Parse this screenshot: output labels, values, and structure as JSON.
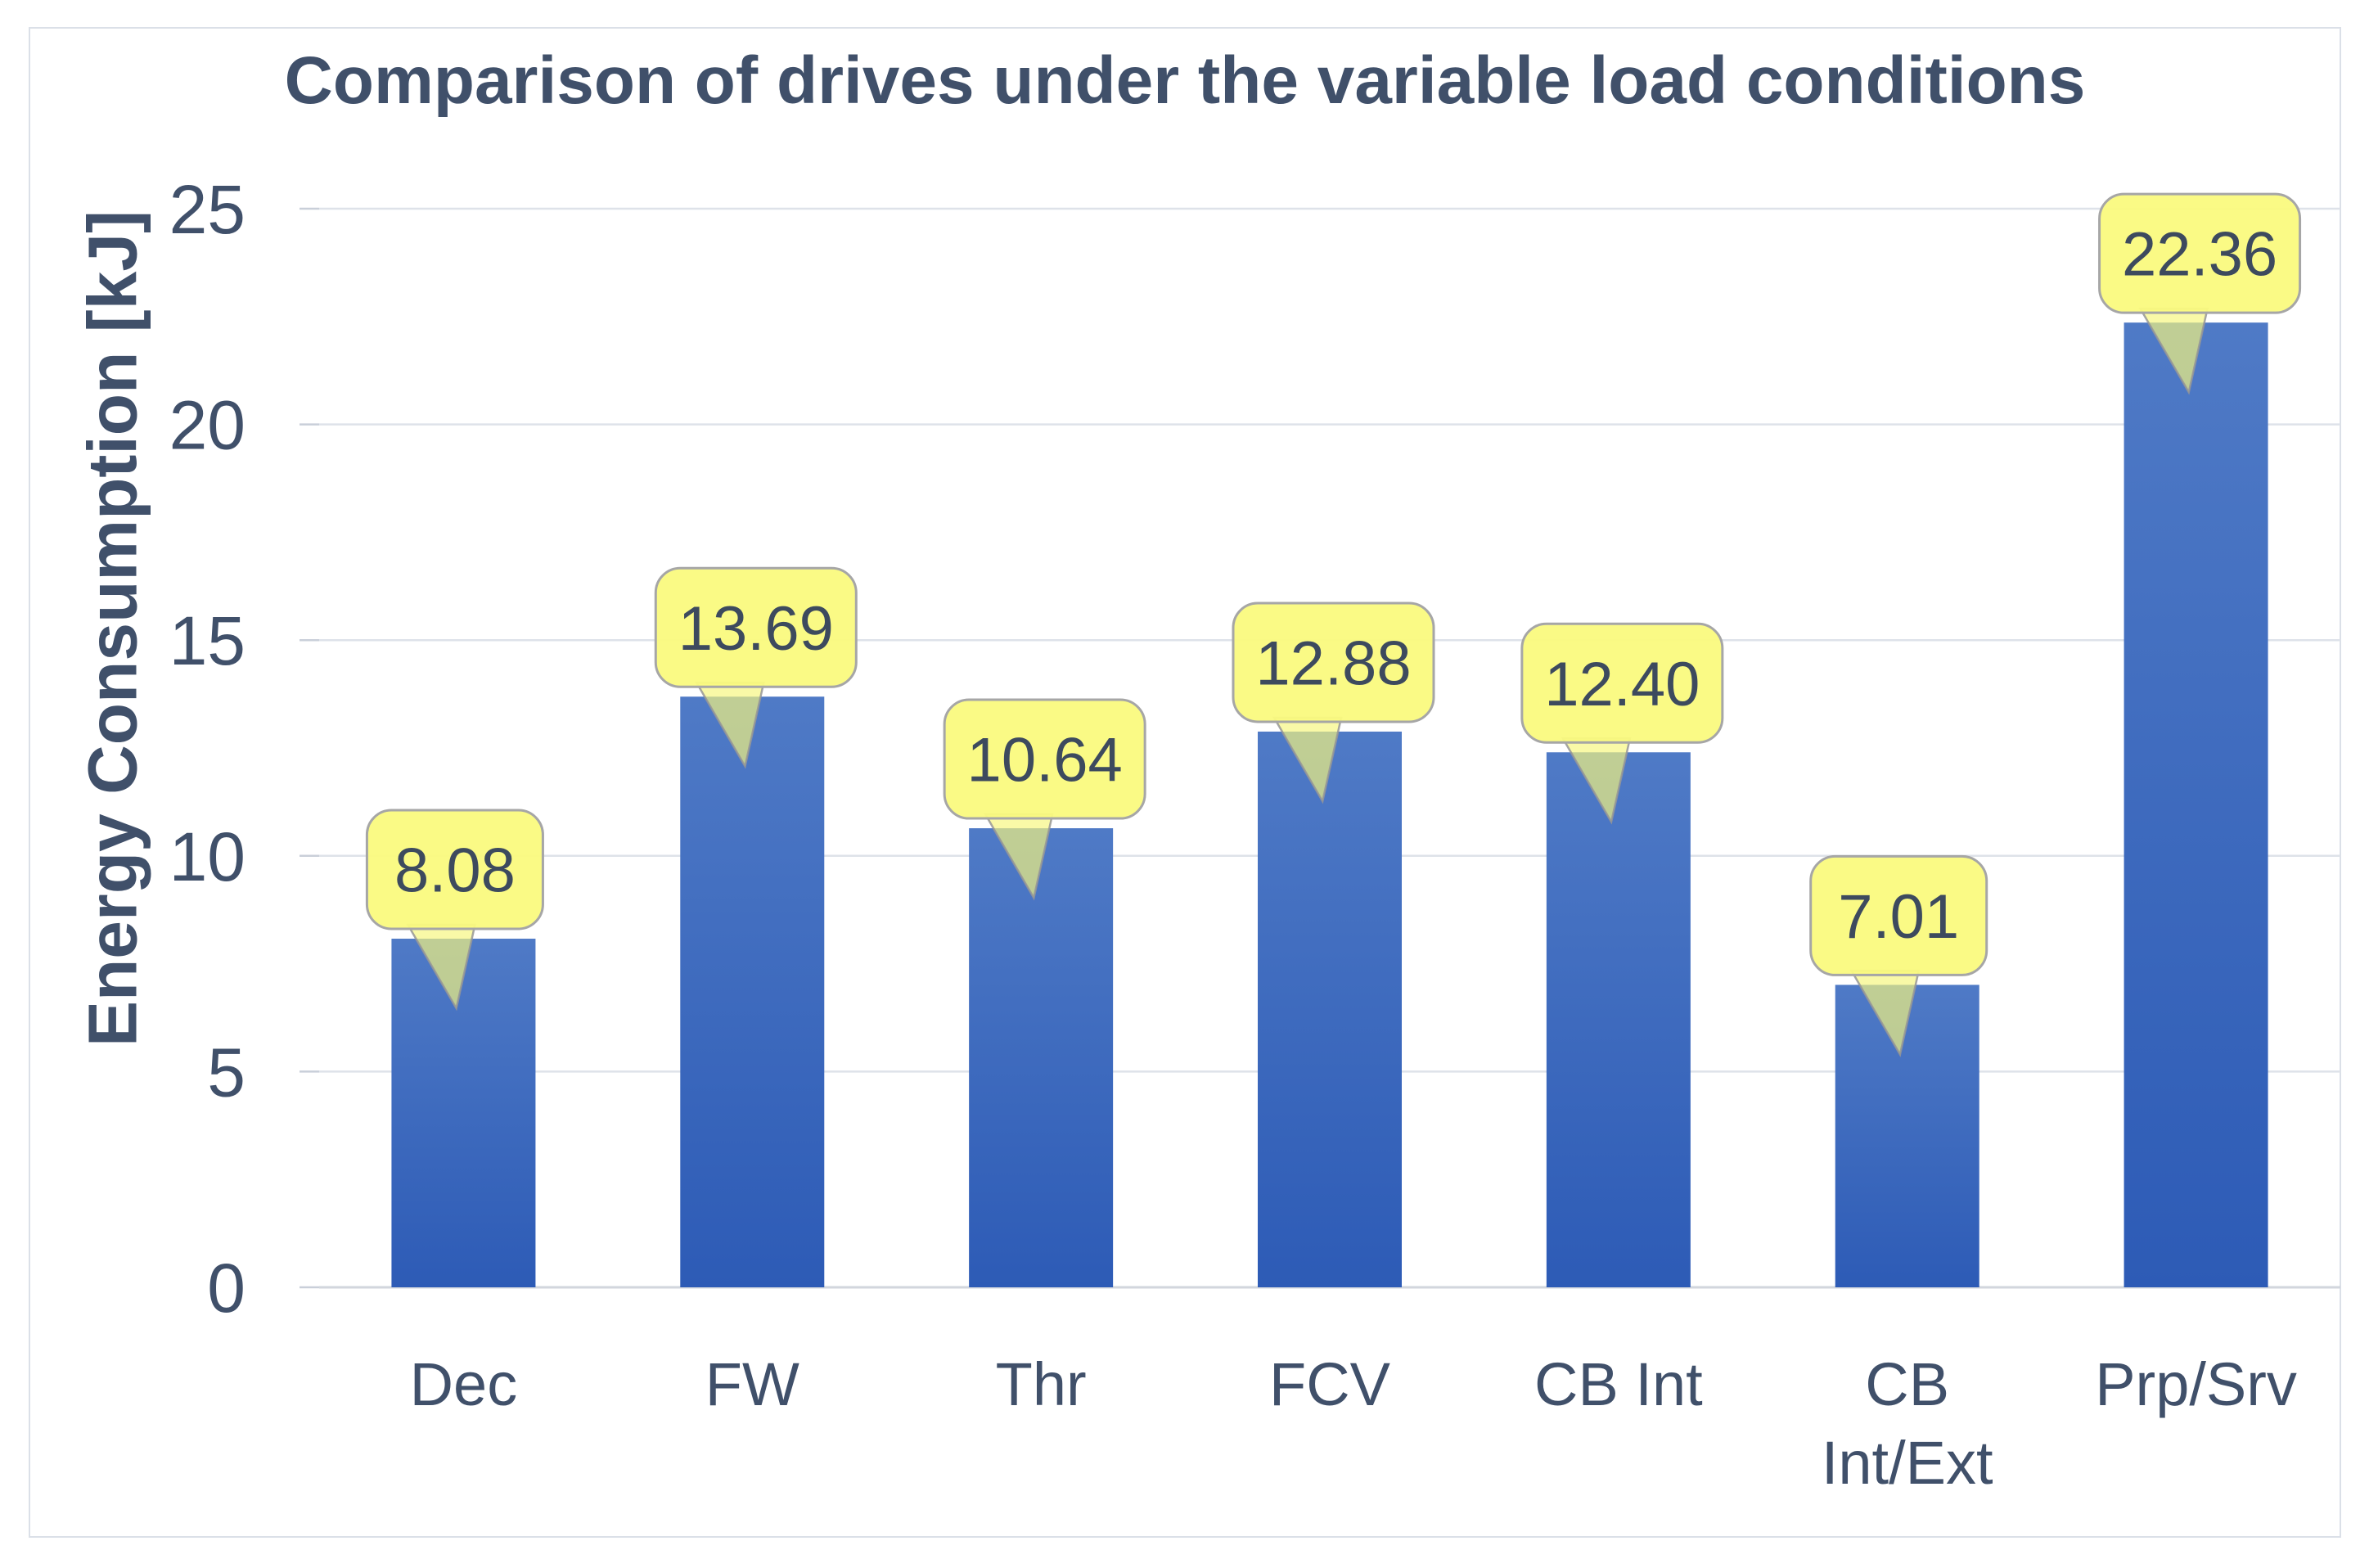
{
  "chart_data": {
    "type": "bar",
    "title": "Comparison of drives under the variable load conditions",
    "ylabel": "Energy Consumption [kJ]",
    "xlabel": "",
    "categories": [
      "Dec",
      "FW",
      "Thr",
      "FCV",
      "CB Int",
      "CB Int/Ext",
      "Prp/Srv"
    ],
    "categories_display": [
      [
        "Dec"
      ],
      [
        "FW"
      ],
      [
        "Thr"
      ],
      [
        "FCV"
      ],
      [
        "CB Int"
      ],
      [
        "CB",
        "Int/Ext"
      ],
      [
        "Prp/Srv"
      ]
    ],
    "values": [
      8.08,
      13.69,
      10.64,
      12.88,
      12.4,
      7.01,
      22.36
    ],
    "value_labels": [
      "8.08",
      "13.69",
      "10.64",
      "12.88",
      "12.40",
      "7.01",
      "22.36"
    ],
    "ylim": [
      0,
      25
    ],
    "yticks": [
      0,
      5,
      10,
      15,
      20,
      25
    ],
    "ytick_labels": [
      "0",
      "5",
      "10",
      "15",
      "20",
      "25"
    ],
    "grid": "horizontal",
    "legend": "none",
    "label_style": "yellow-callout-balloons",
    "colors": {
      "bar_top": "#4F7AC6",
      "bar_bottom": "#2D5BB6",
      "gridline": "#dee2e9",
      "axis_line": "#d2d6dd",
      "tick_mark": "#c9cfd9",
      "text": "#40506a",
      "callout_fill": "#FAFA7E",
      "callout_border": "#a6a6a6",
      "callout_text": "#3d4a5e",
      "figure_border": "#dbe0e8",
      "background": "#ffffff"
    }
  }
}
